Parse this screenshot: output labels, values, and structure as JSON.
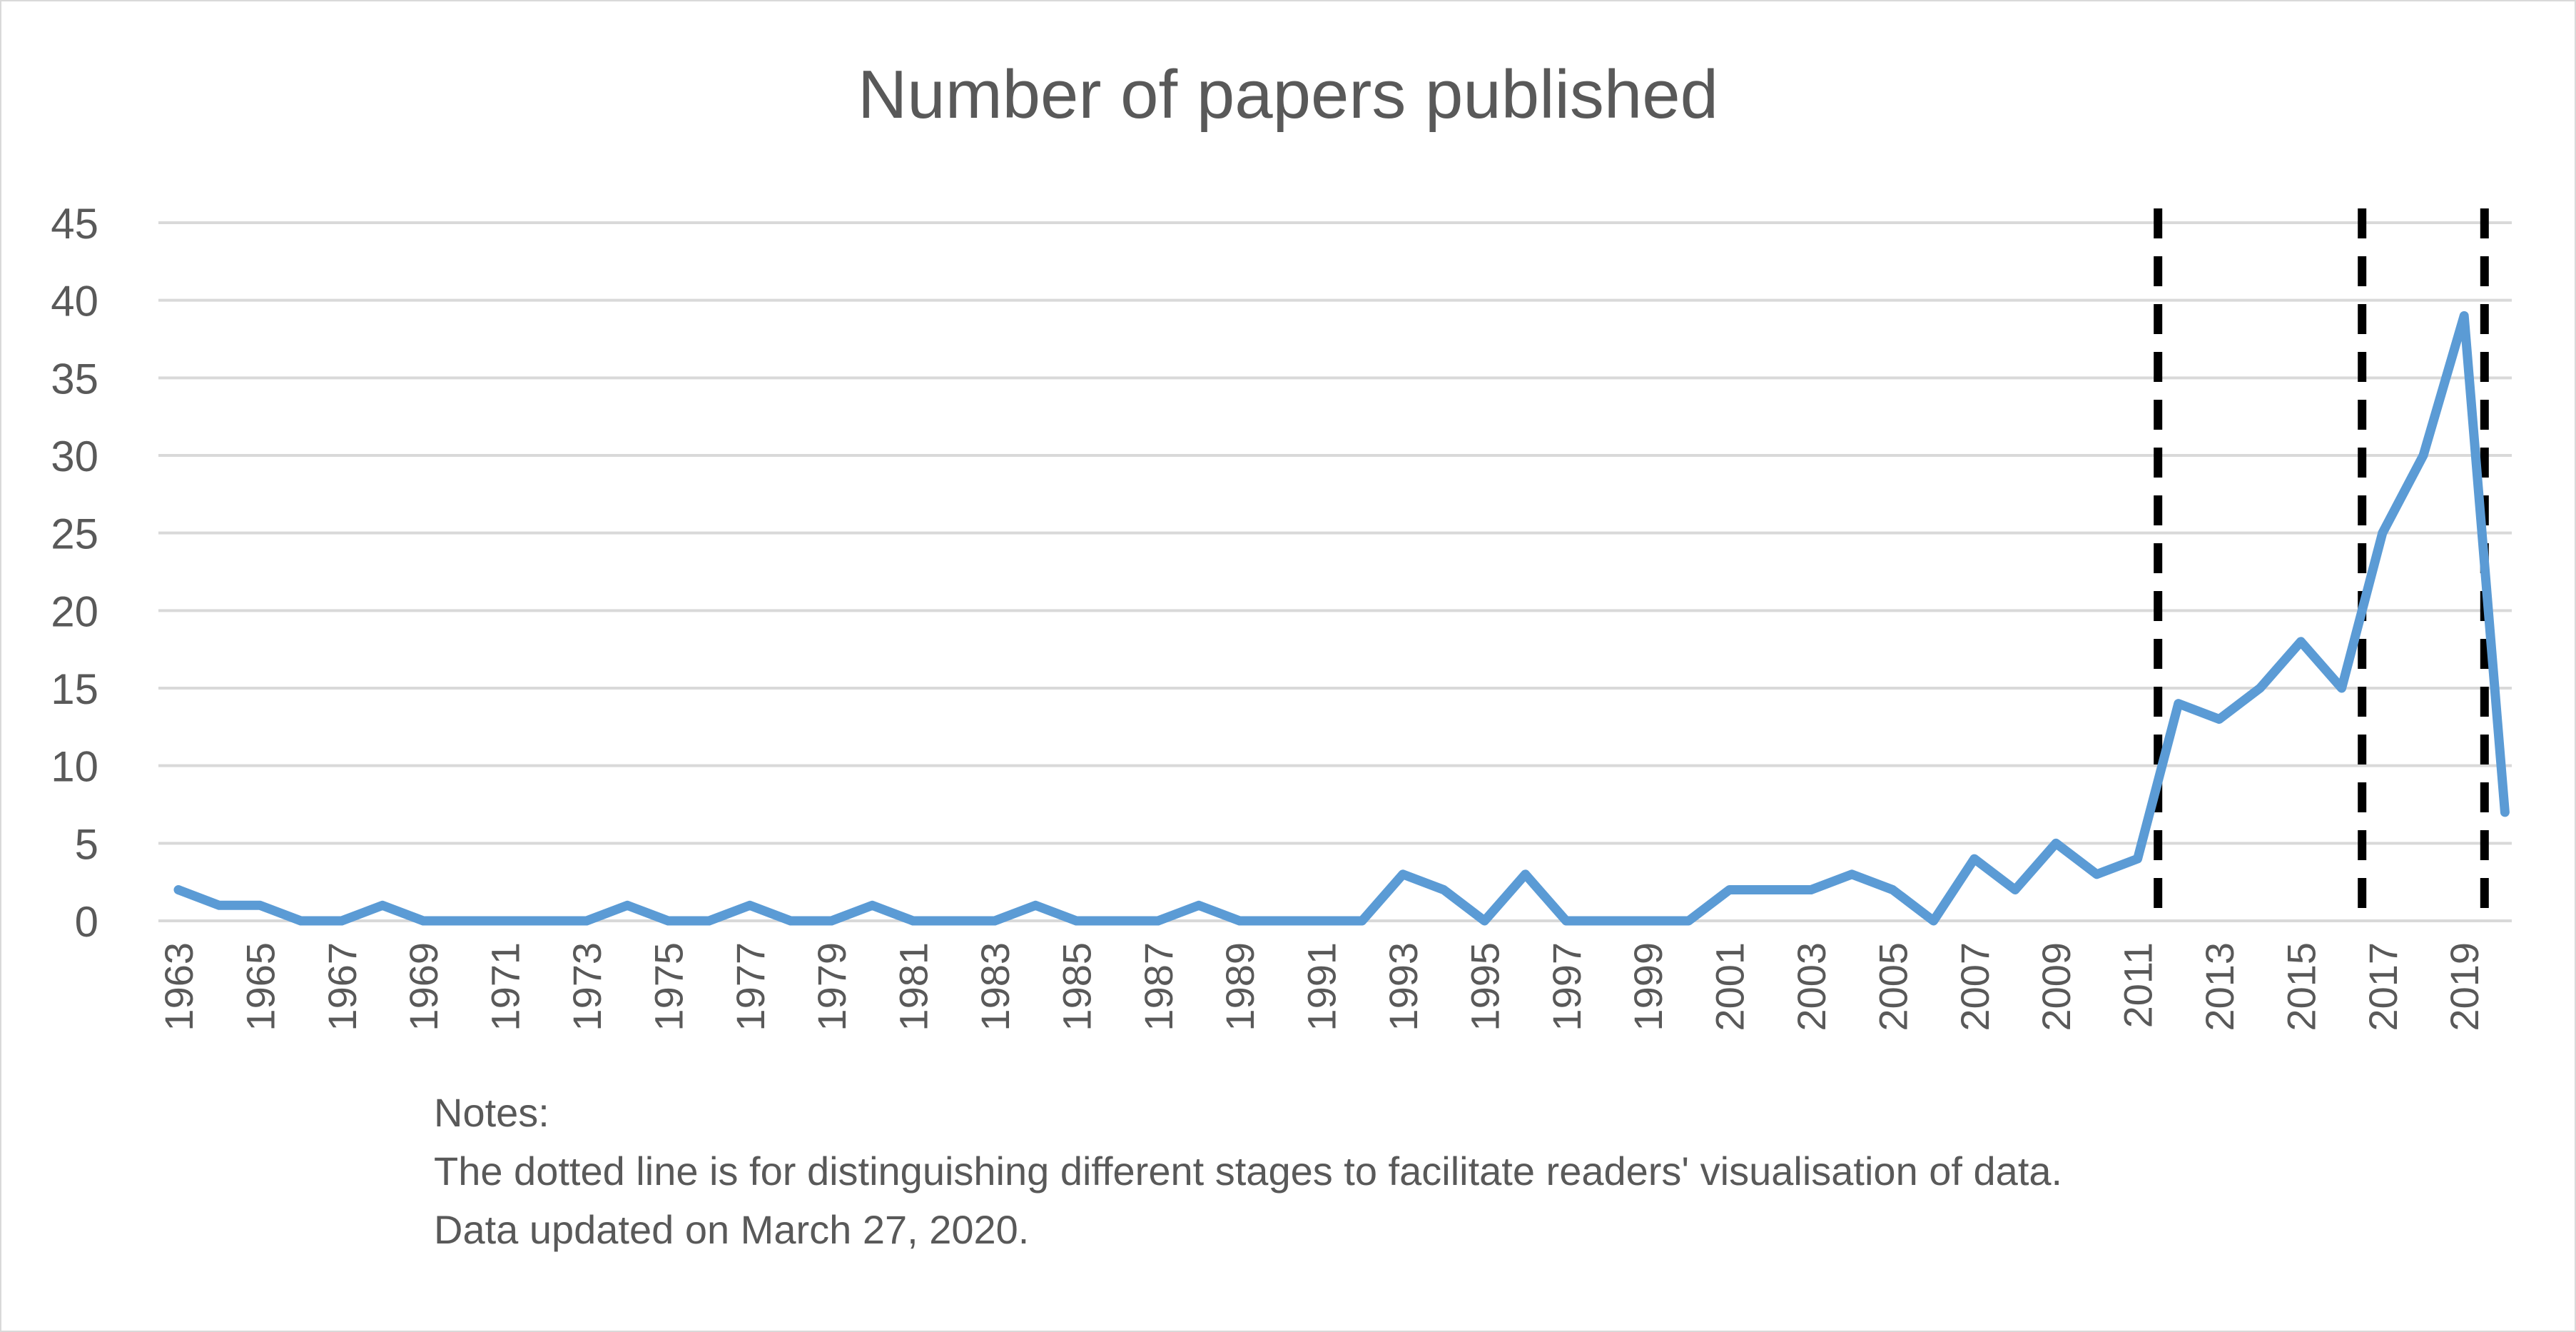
{
  "chart_data": {
    "type": "line",
    "title": "Number of papers published",
    "xlabel": "",
    "ylabel": "",
    "ylim": [
      0,
      45
    ],
    "yticks": [
      0,
      5,
      10,
      15,
      20,
      25,
      30,
      35,
      40,
      45
    ],
    "xlim": [
      1963,
      2020
    ],
    "xticks": [
      1963,
      1965,
      1967,
      1969,
      1971,
      1973,
      1975,
      1977,
      1979,
      1981,
      1983,
      1985,
      1987,
      1989,
      1991,
      1993,
      1995,
      1997,
      1999,
      2001,
      2003,
      2005,
      2007,
      2009,
      2011,
      2013,
      2015,
      2017,
      2019
    ],
    "grid": true,
    "legend": "none",
    "line_color": "#5b9bd5",
    "stage_divider_color": "#000000",
    "series": [
      {
        "x": [
          1963,
          1964,
          1965,
          1966,
          1967,
          1968,
          1969,
          1970,
          1971,
          1972,
          1973,
          1974,
          1975,
          1976,
          1977,
          1978,
          1979,
          1980,
          1981,
          1982,
          1983,
          1984,
          1985,
          1986,
          1987,
          1988,
          1989,
          1990,
          1991,
          1992,
          1993,
          1994,
          1995,
          1996,
          1997,
          1998,
          1999,
          2000,
          2001,
          2002,
          2003,
          2004,
          2005,
          2006,
          2007,
          2008,
          2009,
          2010,
          2011,
          2012,
          2013,
          2014,
          2015,
          2016,
          2017,
          2018,
          2019,
          2020
        ],
        "values": [
          2,
          1,
          1,
          0,
          0,
          1,
          0,
          0,
          0,
          0,
          0,
          1,
          0,
          0,
          1,
          0,
          0,
          1,
          0,
          0,
          0,
          1,
          0,
          0,
          0,
          1,
          0,
          0,
          0,
          0,
          3,
          2,
          0,
          3,
          0,
          0,
          0,
          0,
          2,
          2,
          2,
          3,
          2,
          0,
          4,
          2,
          5,
          3,
          4,
          14,
          13,
          15,
          18,
          15,
          25,
          30,
          39,
          7
        ]
      }
    ],
    "stage_dividers": [
      2011.5,
      2016.5,
      2019.5
    ]
  },
  "notes": {
    "heading": "Notes:",
    "line1": "The dotted line is for distinguishing different stages to facilitate readers' visualisation of data.",
    "line2": "Data updated on March 27, 2020."
  }
}
